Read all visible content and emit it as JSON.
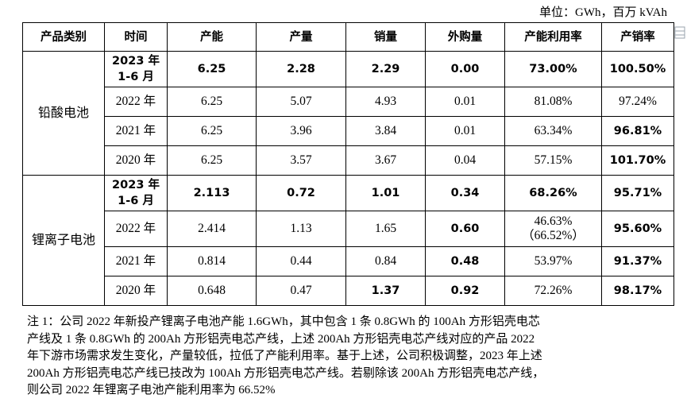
{
  "unit_label": "单位：GWh，百万 kVAh",
  "headers": [
    "产品类别",
    "时间",
    "产能",
    "产量",
    "销量",
    "外购量",
    "产能利用率",
    "产销率"
  ],
  "groups": [
    {
      "category": "铅酸电池",
      "rows": [
        {
          "period": "2023 年\n1-6 月",
          "capacity": "6.25",
          "output": "2.28",
          "sales": "2.29",
          "purchase": "0.00",
          "utilization": "73.00%",
          "sell_rate": "100.50%"
        },
        {
          "period": "2022 年",
          "capacity": "6.25",
          "output": "5.07",
          "sales": "4.93",
          "purchase": "0.01",
          "utilization": "81.08%",
          "sell_rate": "97.24%"
        },
        {
          "period": "2021 年",
          "capacity": "6.25",
          "output": "3.96",
          "sales": "3.84",
          "purchase": "0.01",
          "utilization": "63.34%",
          "sell_rate": "96.81%"
        },
        {
          "period": "2020 年",
          "capacity": "6.25",
          "output": "3.57",
          "sales": "3.67",
          "purchase": "0.04",
          "utilization": "57.15%",
          "sell_rate": "101.70%"
        }
      ]
    },
    {
      "category": "锂离子电池",
      "rows": [
        {
          "period": "2023 年\n1-6 月",
          "capacity": "2.113",
          "output": "0.72",
          "sales": "1.01",
          "purchase": "0.34",
          "utilization": "68.26%",
          "sell_rate": "95.71%"
        },
        {
          "period": "2022 年",
          "capacity": "2.414",
          "output": "1.13",
          "sales": "1.65",
          "purchase": "0.60",
          "utilization": "46.63%\n（66.52%）",
          "sell_rate": "95.60%"
        },
        {
          "period": "2021 年",
          "capacity": "0.814",
          "output": "0.44",
          "sales": "0.84",
          "purchase": "0.48",
          "utilization": "53.97%",
          "sell_rate": "91.37%"
        },
        {
          "period": "2020 年",
          "capacity": "0.648",
          "output": "0.47",
          "sales": "1.37",
          "purchase": "0.92",
          "utilization": "72.26%",
          "sell_rate": "98.17%"
        }
      ]
    }
  ],
  "note_lines": [
    "注 1：公司 2022 年新投产锂离子电池产能 1.6GWh，其中包含 1 条 0.8GWh 的 100Ah 方形铝壳电芯",
    "产线及 1 条 0.8GWh 的 200Ah 方形铝壳电芯产线，上述 200Ah 方形铝壳电芯产线对应的产品 2022",
    "年下游市场需求发生变化，产量较低，拉低了产能利用率。基于上述，公司积极调整，2023 年上述",
    "200Ah 方形铝壳电芯产线已技改为 100Ah 方形铝壳电芯产线。若剔除该 200Ah 方形铝壳电芯产线，",
    "则公司 2022 年锂离子电池产能利用率为 66.52%"
  ]
}
